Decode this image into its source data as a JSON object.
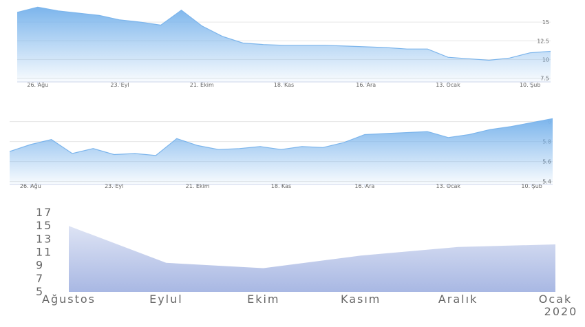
{
  "chart_data": [
    {
      "type": "area",
      "color": "#7cb5ec",
      "grid": true,
      "ytick_side": "right",
      "categories": [
        null,
        "26. Ağu",
        null,
        null,
        null,
        "23. Eyl",
        null,
        null,
        null,
        "21. Ekim",
        null,
        null,
        null,
        "18. Kas",
        null,
        null,
        null,
        "16. Ara",
        null,
        null,
        null,
        "13. Ocak",
        null,
        null,
        null,
        "10. Şub",
        null
      ],
      "values": [
        16.3,
        17,
        16.5,
        16.2,
        15.9,
        15.3,
        15.0,
        14.6,
        16.6,
        14.5,
        13.1,
        12.2,
        12.0,
        11.9,
        11.9,
        11.9,
        11.8,
        11.7,
        11.6,
        11.4,
        11.4,
        10.3,
        10.1,
        9.9,
        10.2,
        10.9,
        11.1
      ],
      "ylim": [
        7,
        17.5
      ],
      "yticks": [
        7.5,
        10,
        12.5,
        15
      ]
    },
    {
      "type": "area",
      "color": "#7cb5ec",
      "grid": true,
      "ytick_side": "right",
      "categories": [
        null,
        "26. Ağu",
        null,
        null,
        null,
        "23. Eyl",
        null,
        null,
        null,
        "21. Ekim",
        null,
        null,
        null,
        "18. Kas",
        null,
        null,
        null,
        "16. Ara",
        null,
        null,
        null,
        "13. Ocak",
        null,
        null,
        null,
        "10. Şub",
        null
      ],
      "values": [
        5.7,
        5.77,
        5.82,
        5.68,
        5.73,
        5.67,
        5.68,
        5.66,
        5.83,
        5.76,
        5.72,
        5.73,
        5.75,
        5.72,
        5.75,
        5.74,
        5.79,
        5.87,
        5.88,
        5.89,
        5.9,
        5.84,
        5.87,
        5.92,
        5.95,
        5.99,
        6.03
      ],
      "ylim": [
        5.37,
        6.08
      ],
      "yticks": [
        5.4,
        5.6,
        5.8,
        6
      ]
    },
    {
      "type": "area",
      "color": "#9fb0e0",
      "grid": false,
      "ytick_side": "left",
      "categories": [
        "Ağustos",
        "Eylul",
        "Ekim",
        "Kasım",
        "Aralık",
        "Ocak"
      ],
      "year_label": "2020",
      "values": [
        15,
        9.4,
        8.6,
        10.5,
        11.8,
        12.2
      ],
      "ylim": [
        5,
        17
      ],
      "yticks": [
        5,
        7,
        9,
        11,
        13,
        15,
        17
      ]
    }
  ]
}
